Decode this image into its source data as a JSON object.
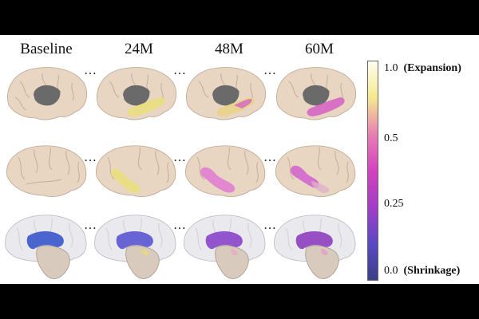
{
  "columns": [
    "Baseline",
    "24M",
    "48M",
    "60M"
  ],
  "separator": "…",
  "colorbar": {
    "ticks": [
      {
        "value": "1.0",
        "label": "(Expansion)"
      },
      {
        "value": "0.5",
        "label": ""
      },
      {
        "value": "0.25",
        "label": ""
      },
      {
        "value": "0.0",
        "label": "(Shrinkage)"
      }
    ],
    "gradient_colors": [
      "#fffdf0",
      "#f5e98c",
      "#e97fb4",
      "#d640c0",
      "#a33cc9",
      "#5a48c6",
      "#3a3f8a"
    ]
  },
  "colors": {
    "brain_surface": "#e8d6c3",
    "ventricle": "#6a6a6a",
    "baseline_ventricle_region": "#d8cbbd"
  },
  "rows": [
    {
      "view": "medial-surface",
      "highlight_colors": [
        "",
        "#e9df7e",
        "#e8d48a",
        "#d35fc4"
      ]
    },
    {
      "view": "lateral-surface",
      "highlight_colors": [
        "",
        "#e9df7e",
        "#e07fd1",
        "#d267cf"
      ]
    },
    {
      "view": "subcortical-structures",
      "highlight_colors": [
        "#3857c9",
        "#5b55d3",
        "#8a45c9",
        "#8e3fbf"
      ]
    }
  ]
}
